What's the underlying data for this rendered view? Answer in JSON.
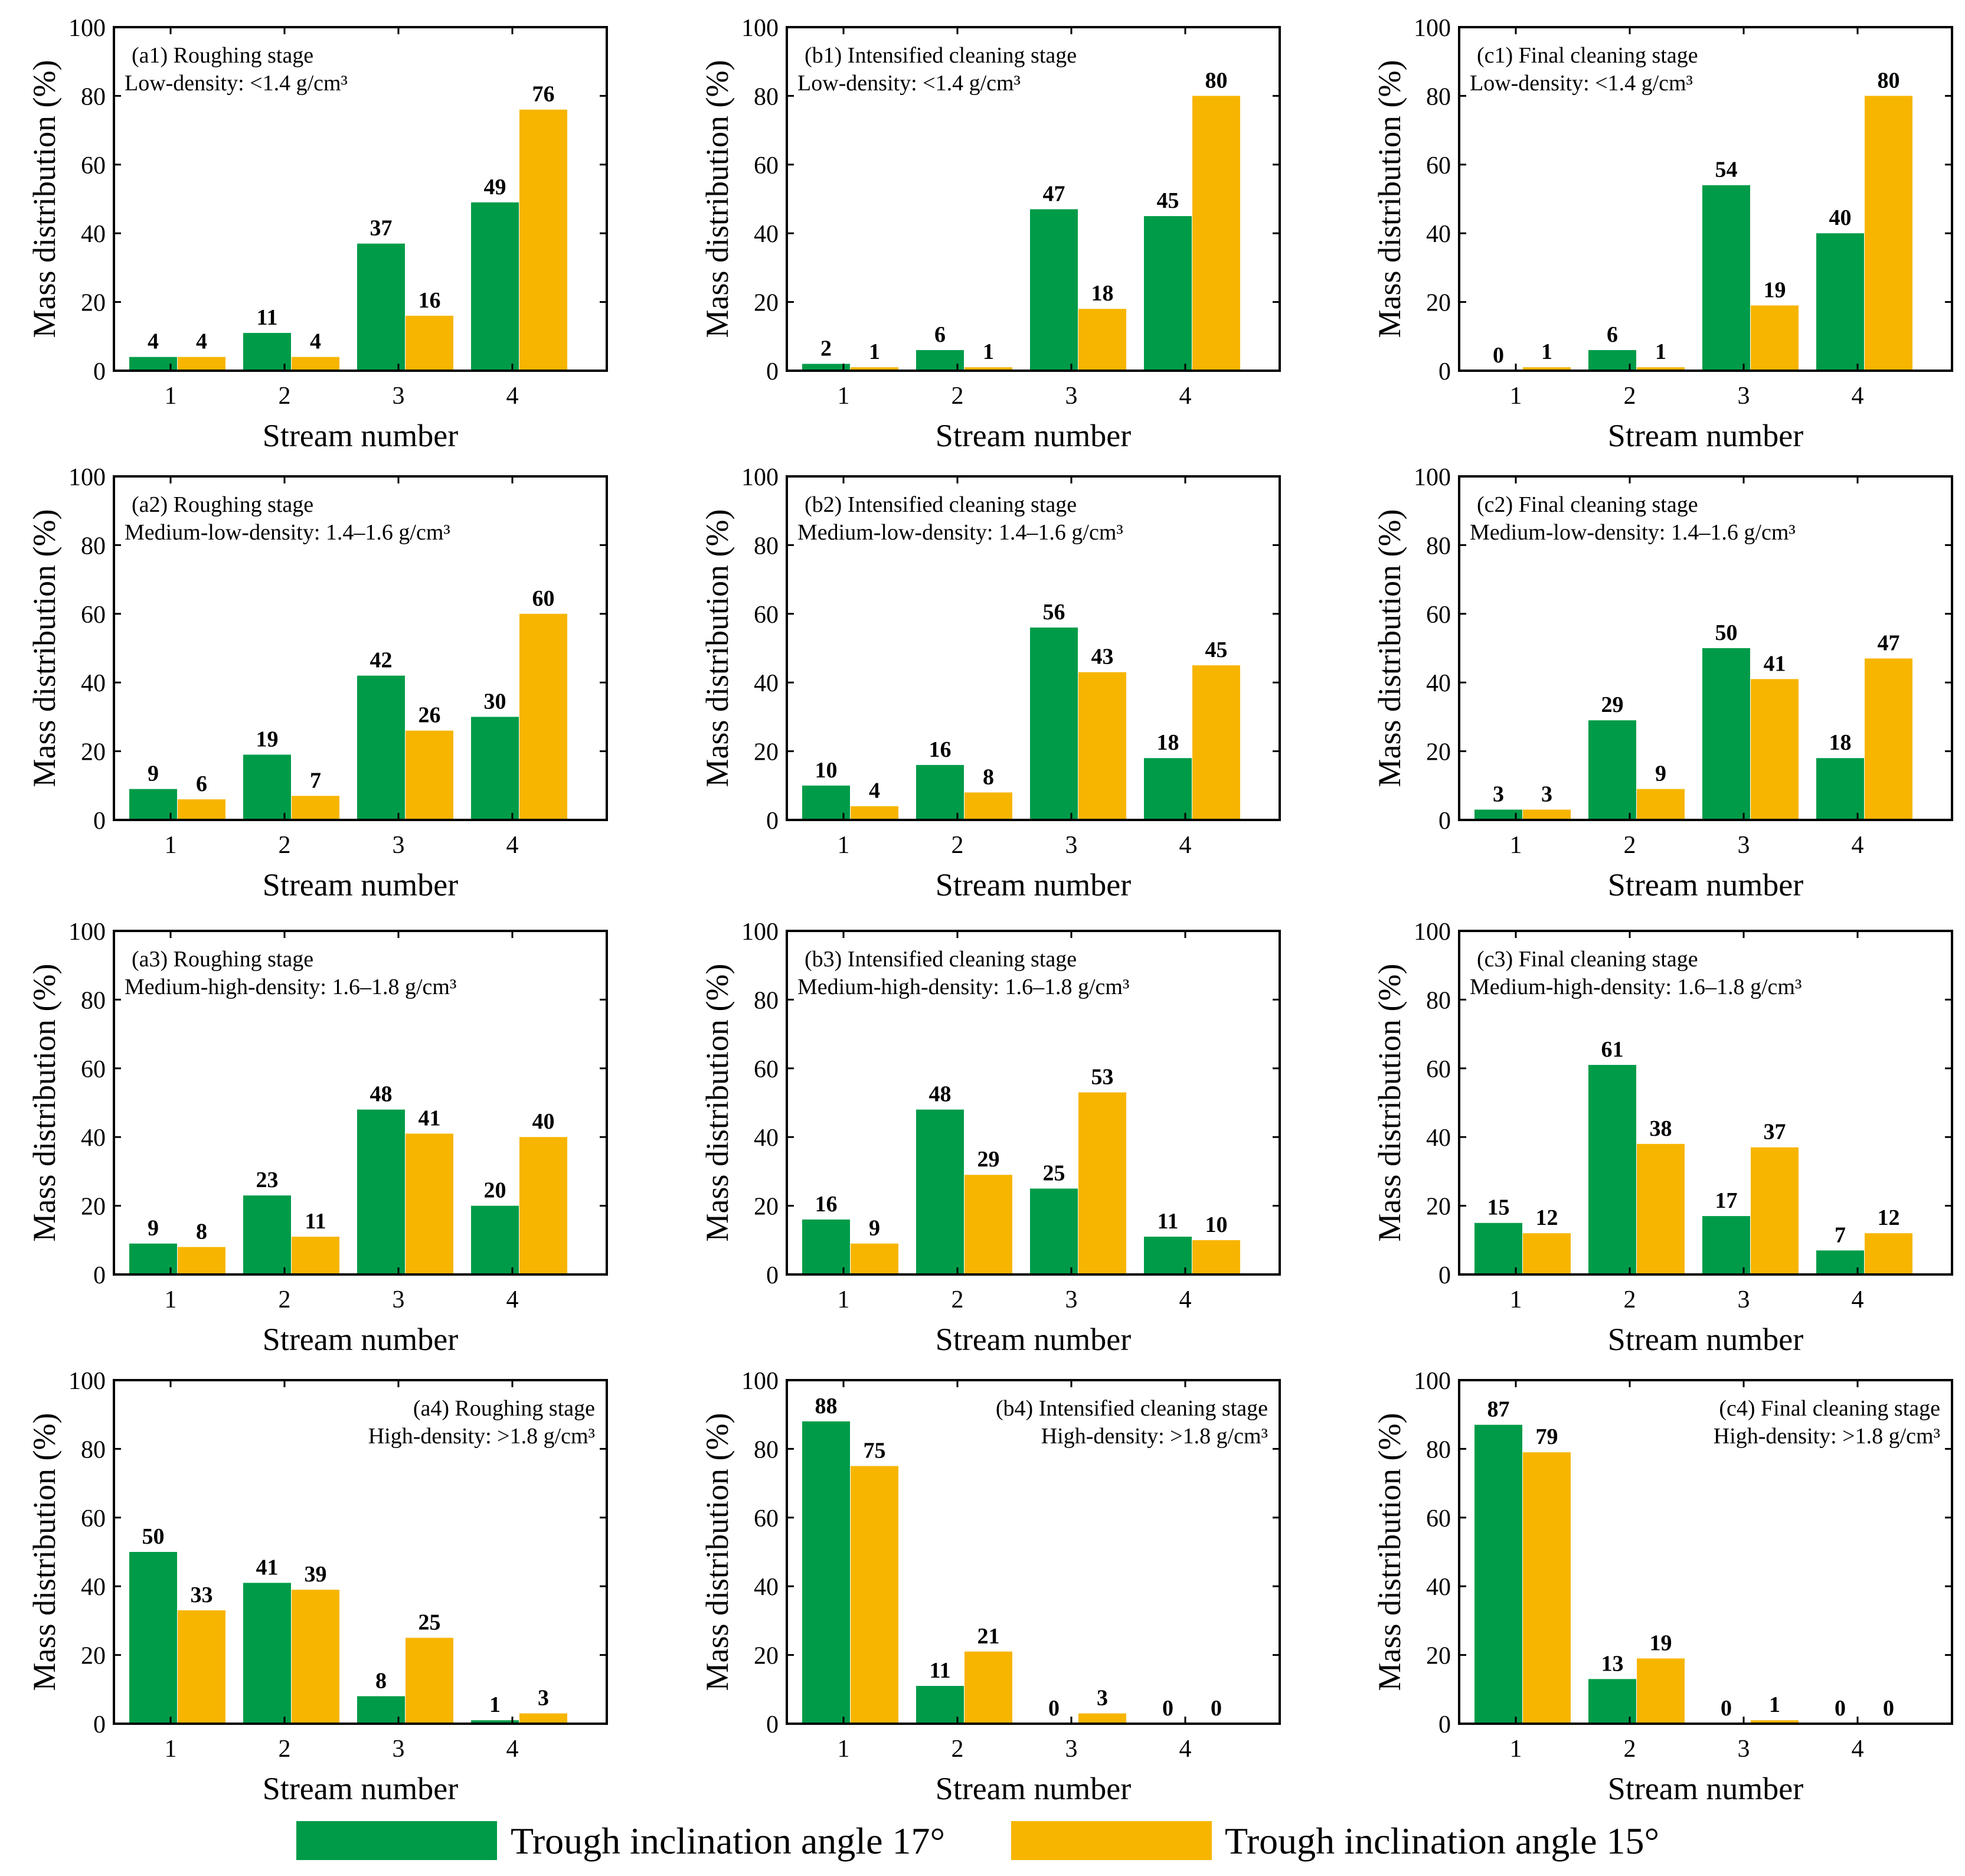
{
  "chart_data": [
    {
      "type": "bar",
      "id": "a1",
      "title": "(a1) Roughing stage",
      "subtitle": "Low-density: <1.4 g/cm³",
      "xlabel": "Stream number",
      "ylabel": "Mass distribution (%)",
      "categories": [
        "1",
        "2",
        "3",
        "4"
      ],
      "yticks": [
        "0",
        "20",
        "40",
        "60",
        "80",
        "100"
      ],
      "ylim": [
        0,
        100
      ],
      "label_position": "top-left",
      "series": [
        {
          "name": "Trough inclination angle 17°",
          "values": [
            4,
            11,
            37,
            49
          ]
        },
        {
          "name": "Trough inclination angle 15°",
          "values": [
            4,
            4,
            16,
            76
          ]
        }
      ]
    },
    {
      "type": "bar",
      "id": "b1",
      "title": "(b1) Intensified cleaning stage",
      "subtitle": "Low-density: <1.4 g/cm³",
      "xlabel": "Stream number",
      "ylabel": "Mass distribution (%)",
      "categories": [
        "1",
        "2",
        "3",
        "4"
      ],
      "yticks": [
        "0",
        "20",
        "40",
        "60",
        "80",
        "100"
      ],
      "ylim": [
        0,
        100
      ],
      "label_position": "top-left",
      "series": [
        {
          "name": "Trough inclination angle 17°",
          "values": [
            2,
            6,
            47,
            45
          ]
        },
        {
          "name": "Trough inclination angle 15°",
          "values": [
            1,
            1,
            18,
            80
          ]
        }
      ]
    },
    {
      "type": "bar",
      "id": "c1",
      "title": "(c1) Final cleaning stage",
      "subtitle": "Low-density: <1.4 g/cm³",
      "xlabel": "Stream number",
      "ylabel": "Mass distribution (%)",
      "categories": [
        "1",
        "2",
        "3",
        "4"
      ],
      "yticks": [
        "0",
        "20",
        "40",
        "60",
        "80",
        "100"
      ],
      "ylim": [
        0,
        100
      ],
      "label_position": "top-left",
      "series": [
        {
          "name": "Trough inclination angle 17°",
          "values": [
            0,
            6,
            54,
            40
          ]
        },
        {
          "name": "Trough inclination angle 15°",
          "values": [
            1,
            1,
            19,
            80
          ]
        }
      ]
    },
    {
      "type": "bar",
      "id": "a2",
      "title": "(a2) Roughing stage",
      "subtitle": "Medium-low-density: 1.4–1.6 g/cm³",
      "xlabel": "Stream number",
      "ylabel": "Mass distribution (%)",
      "categories": [
        "1",
        "2",
        "3",
        "4"
      ],
      "yticks": [
        "0",
        "20",
        "40",
        "60",
        "80",
        "100"
      ],
      "ylim": [
        0,
        100
      ],
      "label_position": "top-left",
      "series": [
        {
          "name": "Trough inclination angle 17°",
          "values": [
            9,
            19,
            42,
            30
          ]
        },
        {
          "name": "Trough inclination angle 15°",
          "values": [
            6,
            7,
            26,
            60
          ]
        }
      ]
    },
    {
      "type": "bar",
      "id": "b2",
      "title": "(b2) Intensified cleaning stage",
      "subtitle": "Medium-low-density: 1.4–1.6 g/cm³",
      "xlabel": "Stream number",
      "ylabel": "Mass distribution (%)",
      "categories": [
        "1",
        "2",
        "3",
        "4"
      ],
      "yticks": [
        "0",
        "20",
        "40",
        "60",
        "80",
        "100"
      ],
      "ylim": [
        0,
        100
      ],
      "label_position": "top-left",
      "series": [
        {
          "name": "Trough inclination angle 17°",
          "values": [
            10,
            16,
            56,
            18
          ]
        },
        {
          "name": "Trough inclination angle 15°",
          "values": [
            4,
            8,
            43,
            45
          ]
        }
      ]
    },
    {
      "type": "bar",
      "id": "c2",
      "title": "(c2) Final cleaning stage",
      "subtitle": "Medium-low-density: 1.4–1.6 g/cm³",
      "xlabel": "Stream number",
      "ylabel": "Mass distribution (%)",
      "categories": [
        "1",
        "2",
        "3",
        "4"
      ],
      "yticks": [
        "0",
        "20",
        "40",
        "60",
        "80",
        "100"
      ],
      "ylim": [
        0,
        100
      ],
      "label_position": "top-left",
      "series": [
        {
          "name": "Trough inclination angle 17°",
          "values": [
            3,
            29,
            50,
            18
          ]
        },
        {
          "name": "Trough inclination angle 15°",
          "values": [
            3,
            9,
            41,
            47
          ]
        }
      ]
    },
    {
      "type": "bar",
      "id": "a3",
      "title": "(a3) Roughing stage",
      "subtitle": "Medium-high-density: 1.6–1.8 g/cm³",
      "xlabel": "Stream number",
      "ylabel": "Mass distribution (%)",
      "categories": [
        "1",
        "2",
        "3",
        "4"
      ],
      "yticks": [
        "0",
        "20",
        "40",
        "60",
        "80",
        "100"
      ],
      "ylim": [
        0,
        100
      ],
      "label_position": "top-left",
      "series": [
        {
          "name": "Trough inclination angle 17°",
          "values": [
            9,
            23,
            48,
            20
          ]
        },
        {
          "name": "Trough inclination angle 15°",
          "values": [
            8,
            11,
            41,
            40
          ]
        }
      ]
    },
    {
      "type": "bar",
      "id": "b3",
      "title": "(b3) Intensified cleaning stage",
      "subtitle": "Medium-high-density: 1.6–1.8 g/cm³",
      "xlabel": "Stream number",
      "ylabel": "Mass distribution (%)",
      "categories": [
        "1",
        "2",
        "3",
        "4"
      ],
      "yticks": [
        "0",
        "20",
        "40",
        "60",
        "80",
        "100"
      ],
      "ylim": [
        0,
        100
      ],
      "label_position": "top-left",
      "series": [
        {
          "name": "Trough inclination angle 17°",
          "values": [
            16,
            48,
            25,
            11
          ]
        },
        {
          "name": "Trough inclination angle 15°",
          "values": [
            9,
            29,
            53,
            10
          ]
        }
      ]
    },
    {
      "type": "bar",
      "id": "c3",
      "title": "(c3) Final cleaning stage",
      "subtitle": "Medium-high-density: 1.6–1.8 g/cm³",
      "xlabel": "Stream number",
      "ylabel": "Mass distribution (%)",
      "categories": [
        "1",
        "2",
        "3",
        "4"
      ],
      "yticks": [
        "0",
        "20",
        "40",
        "60",
        "80",
        "100"
      ],
      "ylim": [
        0,
        100
      ],
      "label_position": "top-left",
      "series": [
        {
          "name": "Trough inclination angle 17°",
          "values": [
            15,
            61,
            17,
            7
          ]
        },
        {
          "name": "Trough inclination angle 15°",
          "values": [
            12,
            38,
            37,
            12
          ]
        }
      ]
    },
    {
      "type": "bar",
      "id": "a4",
      "title": "(a4) Roughing stage",
      "subtitle": "High-density: >1.8 g/cm³",
      "xlabel": "Stream number",
      "ylabel": "Mass distribution (%)",
      "categories": [
        "1",
        "2",
        "3",
        "4"
      ],
      "yticks": [
        "0",
        "20",
        "40",
        "60",
        "80",
        "100"
      ],
      "ylim": [
        0,
        100
      ],
      "label_position": "top-right",
      "series": [
        {
          "name": "Trough inclination angle 17°",
          "values": [
            50,
            41,
            8,
            1
          ]
        },
        {
          "name": "Trough inclination angle 15°",
          "values": [
            33,
            39,
            25,
            3
          ]
        }
      ]
    },
    {
      "type": "bar",
      "id": "b4",
      "title": "(b4) Intensified cleaning stage",
      "subtitle": "High-density: >1.8 g/cm³",
      "xlabel": "Stream number",
      "ylabel": "Mass distribution (%)",
      "categories": [
        "1",
        "2",
        "3",
        "4"
      ],
      "yticks": [
        "0",
        "20",
        "40",
        "60",
        "80",
        "100"
      ],
      "ylim": [
        0,
        100
      ],
      "label_position": "top-right",
      "series": [
        {
          "name": "Trough inclination angle 17°",
          "values": [
            88,
            11,
            0,
            0
          ]
        },
        {
          "name": "Trough inclination angle 15°",
          "values": [
            75,
            21,
            3,
            0
          ]
        }
      ]
    },
    {
      "type": "bar",
      "id": "c4",
      "title": "(c4) Final cleaning stage",
      "subtitle": "High-density: >1.8 g/cm³",
      "xlabel": "Stream number",
      "ylabel": "Mass distribution (%)",
      "categories": [
        "1",
        "2",
        "3",
        "4"
      ],
      "yticks": [
        "0",
        "20",
        "40",
        "60",
        "80",
        "100"
      ],
      "ylim": [
        0,
        100
      ],
      "label_position": "top-right",
      "series": [
        {
          "name": "Trough inclination angle 17°",
          "values": [
            87,
            13,
            0,
            0
          ]
        },
        {
          "name": "Trough inclination angle 15°",
          "values": [
            79,
            19,
            1,
            0
          ]
        }
      ]
    }
  ],
  "legend": {
    "position": "bottom-center",
    "items": [
      {
        "label": "Trough inclination angle 17°",
        "color": "#009b48"
      },
      {
        "label": "Trough inclination angle 15°",
        "color": "#f7b500"
      }
    ]
  }
}
